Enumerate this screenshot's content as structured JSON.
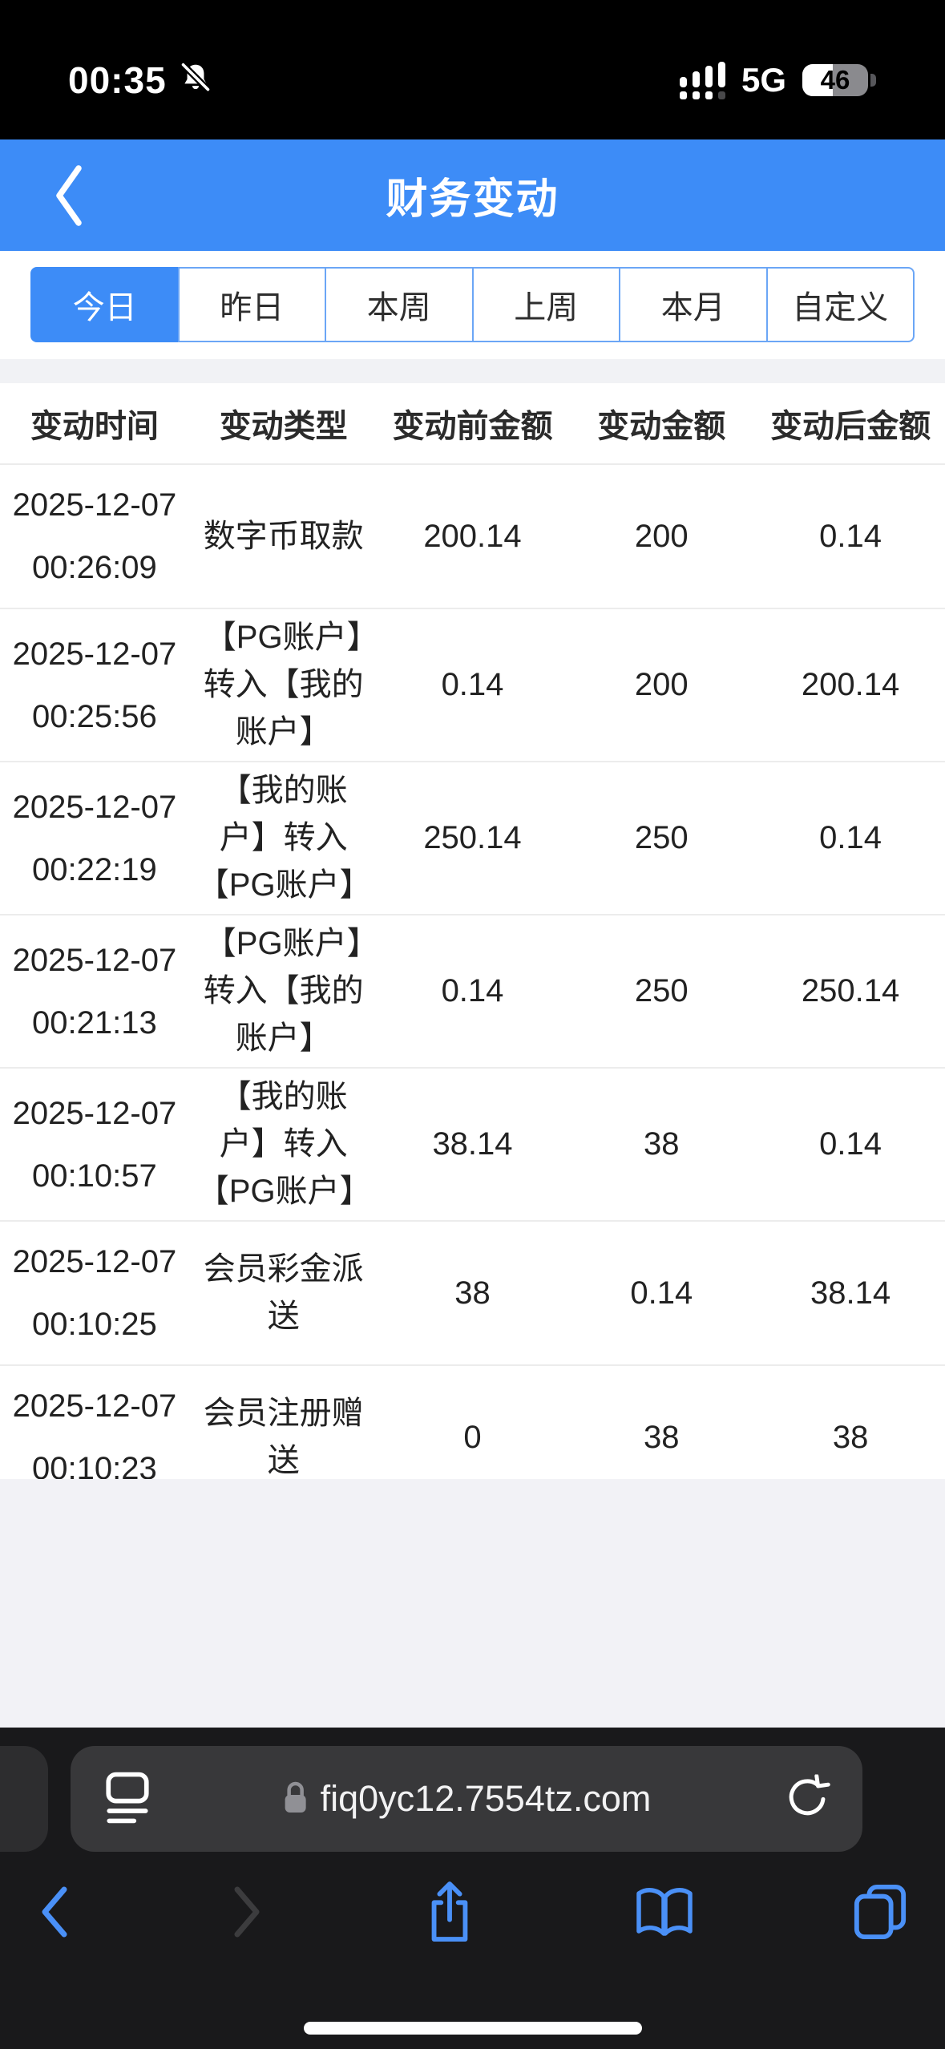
{
  "status_bar": {
    "time": "00:35",
    "network": "5G",
    "battery_percent": "46"
  },
  "nav": {
    "title": "财务变动"
  },
  "filter_tabs": [
    {
      "label": "今日",
      "selected": true
    },
    {
      "label": "昨日",
      "selected": false
    },
    {
      "label": "本周",
      "selected": false
    },
    {
      "label": "上周",
      "selected": false
    },
    {
      "label": "本月",
      "selected": false
    },
    {
      "label": "自定义",
      "selected": false
    }
  ],
  "table": {
    "headers": [
      "变动时间",
      "变动类型",
      "变动前金额",
      "变动金额",
      "变动后金额"
    ],
    "rows": [
      {
        "date": "2025-12-07",
        "time": "00:26:09",
        "type": "数字币取款",
        "before": "200.14",
        "amount": "200",
        "after": "0.14"
      },
      {
        "date": "2025-12-07",
        "time": "00:25:56",
        "type": "【PG账户】转入【我的账户】",
        "before": "0.14",
        "amount": "200",
        "after": "200.14"
      },
      {
        "date": "2025-12-07",
        "time": "00:22:19",
        "type": "【我的账户】转入【PG账户】",
        "before": "250.14",
        "amount": "250",
        "after": "0.14"
      },
      {
        "date": "2025-12-07",
        "time": "00:21:13",
        "type": "【PG账户】转入【我的账户】",
        "before": "0.14",
        "amount": "250",
        "after": "250.14"
      },
      {
        "date": "2025-12-07",
        "time": "00:10:57",
        "type": "【我的账户】转入【PG账户】",
        "before": "38.14",
        "amount": "38",
        "after": "0.14"
      },
      {
        "date": "2025-12-07",
        "time": "00:10:25",
        "type": "会员彩金派送",
        "before": "38",
        "amount": "0.14",
        "after": "38.14"
      },
      {
        "date": "2025-12-07",
        "time": "00:10:23",
        "type": "会员注册赠送",
        "before": "0",
        "amount": "38",
        "after": "38"
      }
    ]
  },
  "browser": {
    "url": "fiq0yc12.7554tz.com"
  },
  "colors": {
    "header_blue": "#3d8cf7",
    "tab_border_blue": "#6ba6f6",
    "safari_icon_blue": "#4a90f7",
    "row_divider": "#ececec",
    "page_gray": "#f2f2f6",
    "browser_bar_bg": "#19191b",
    "url_capsule_bg": "#38383a",
    "lock_gray": "#909095"
  }
}
